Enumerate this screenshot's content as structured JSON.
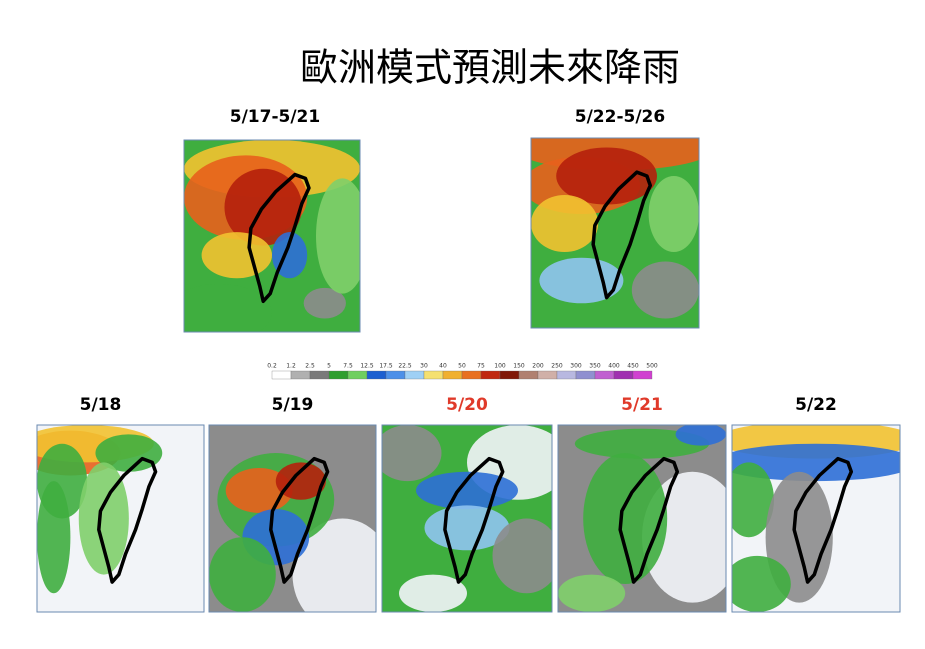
{
  "title": "歐洲模式預測未來降雨",
  "period_maps": [
    {
      "label": "5/17-5/21"
    },
    {
      "label": "5/22-5/26"
    }
  ],
  "colorbar": {
    "labels": [
      "0.2",
      "1.2",
      "2.5",
      "5",
      "7.5",
      "12.5",
      "17.5",
      "22.5",
      "30",
      "40",
      "50",
      "75",
      "100",
      "150",
      "200",
      "250",
      "300",
      "350",
      "400",
      "450",
      "500"
    ]
  },
  "daily_maps": [
    {
      "label": "5/18",
      "label_color": "#000000"
    },
    {
      "label": "5/19",
      "label_color": "#000000"
    },
    {
      "label": "5/20",
      "label_color": "#e03a2a"
    },
    {
      "label": "5/21",
      "label_color": "#e03a2a"
    },
    {
      "label": "5/22",
      "label_color": "#000000"
    }
  ]
}
